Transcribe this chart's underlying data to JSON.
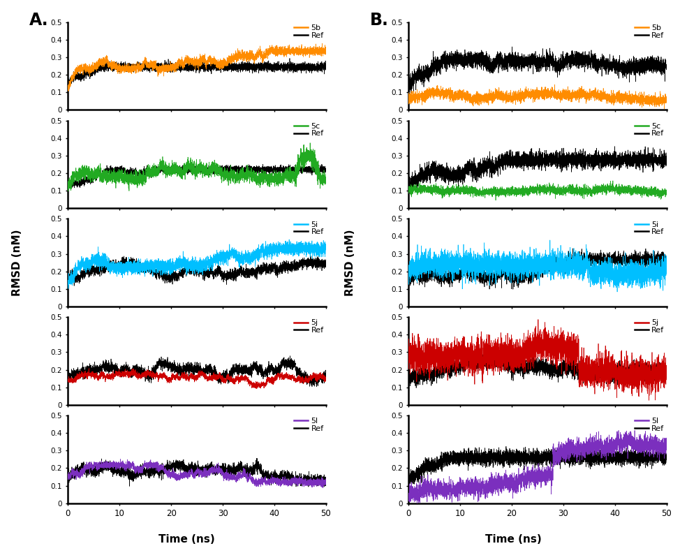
{
  "n_points": 5000,
  "time_max": 50,
  "ylim": [
    0,
    0.5
  ],
  "yticks": [
    0,
    0.1,
    0.2,
    0.3,
    0.4,
    0.5
  ],
  "xticks": [
    0,
    10,
    20,
    30,
    40,
    50
  ],
  "xlabel": "Time (ns)",
  "ylabel": "RMSD (nM)",
  "panel_A_label": "A.",
  "panel_B_label": "B.",
  "compounds": [
    "5b",
    "5c",
    "5i",
    "5j",
    "5l"
  ],
  "colors": {
    "5b": "#FF8C00",
    "5c": "#22AA22",
    "5i": "#00BFFF",
    "5j": "#CC0000",
    "5l": "#7B2FBE",
    "Ref": "#000000"
  }
}
